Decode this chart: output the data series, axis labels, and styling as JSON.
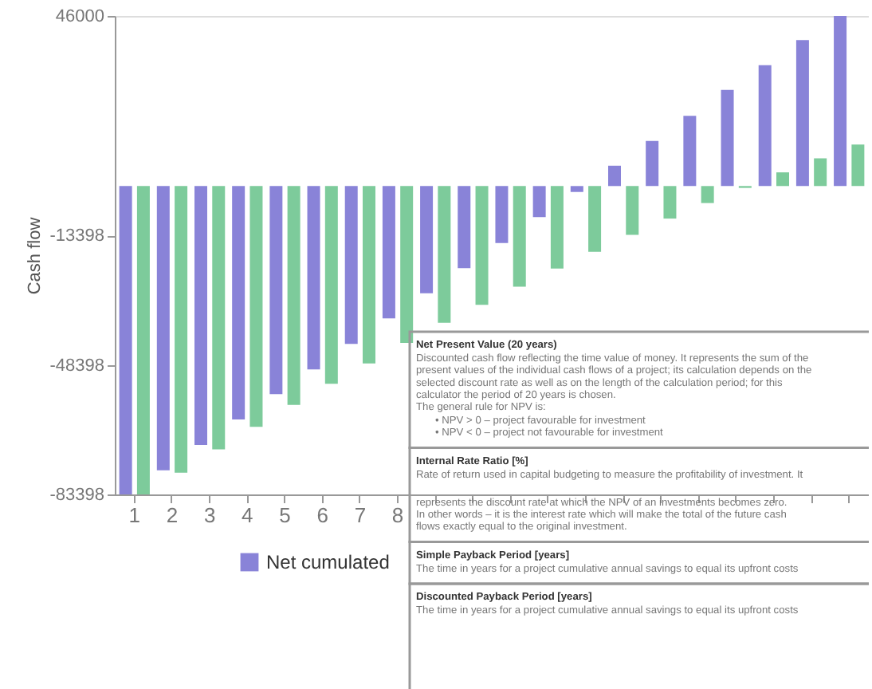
{
  "chart_data": {
    "type": "bar",
    "ylabel": "Cash flow",
    "categories": [
      "1",
      "2",
      "3",
      "4",
      "5",
      "6",
      "7",
      "8",
      null,
      null,
      null,
      null,
      null,
      null,
      null,
      null,
      null,
      null,
      null,
      null
    ],
    "series": [
      {
        "name": "Net cumulated",
        "color": "#8983d8",
        "values": [
          -83398,
          -76900,
          -70000,
          -63100,
          -56300,
          -49600,
          -42700,
          -35800,
          -29000,
          -22200,
          -15400,
          -8400,
          -1600,
          5500,
          12200,
          19000,
          26000,
          32700,
          39500,
          46000
        ]
      },
      {
        "color": "#7dcb9b",
        "values": [
          -83398,
          -77500,
          -71200,
          -65100,
          -59200,
          -53500,
          -48000,
          -42400,
          -37000,
          -32100,
          -27200,
          -22300,
          -17800,
          -13200,
          -8800,
          -4600,
          -500,
          3700,
          7500,
          11200
        ]
      }
    ],
    "ylim": [
      -83398,
      46000
    ],
    "yticks": [
      46000,
      -13398,
      -48398,
      -83398
    ],
    "grid": false,
    "legend": "bottom",
    "annotations": [
      "Net Present Value (20 years)",
      "Discounted cash flow reflecting the time value of money. It represents the sum of the present values of the individual cash flows of a project; its calculation depends on the selected discount rate as well as on the length of the calculation period; for this calculator the period of 20 years is chosen.",
      "The general rule for NPV is:",
      "• NPV > 0 – project favourable for investment",
      "• NPV < 0 – project not favourable for investment",
      "Internal Rate Ratio [%]",
      "Rate of return used in capital budgeting to measure the profitability of investment. It represents the discount rate at which the NPV of an investments becomes zero.",
      "In other words – it is the interest rate which will make the total of the future cash flows exactly equal to the original investment.",
      "Simple Payback Period [years]",
      "The time in years for a project cumulative annual savings to equal its upfront costs",
      "Discounted Payback Period [years]",
      "The time in years for a project cumulative annual savings to equal its upfront costs"
    ]
  }
}
